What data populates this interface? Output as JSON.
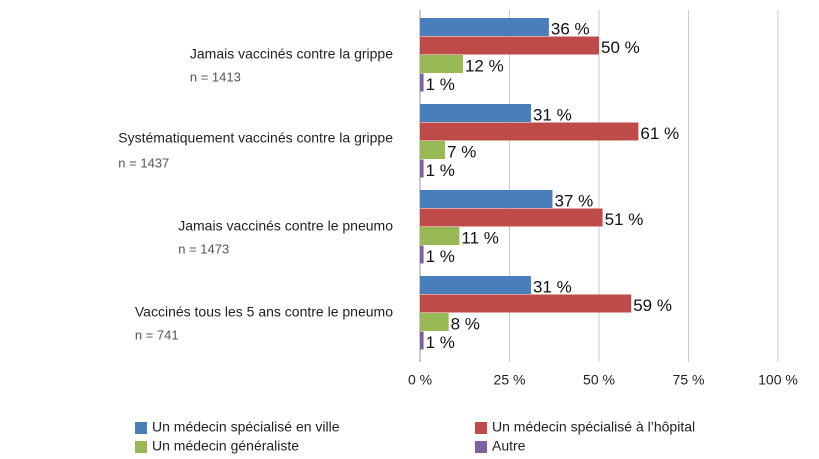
{
  "chart_data": {
    "type": "hbar",
    "categories": [
      "Jamais vaccinés contre la grippe",
      "Systématiquement vaccinés contre la grippe",
      "Jamais vaccinés contre le pneumo",
      "Vaccinés tous les 5 ans contre le pneumo"
    ],
    "category_notes": [
      "n = 1413",
      "n = 1437",
      "n = 1473",
      "n = 741"
    ],
    "series": [
      {
        "name": "Un médecin spécialisé en ville",
        "color": "#4a7ebb",
        "values": [
          36,
          31,
          37,
          31
        ],
        "value_labels": [
          "36 %",
          "31 %",
          "37 %",
          "31 %"
        ]
      },
      {
        "name": "Un médecin spécialisé à l’hôpital",
        "color": "#be4b48",
        "values": [
          50,
          61,
          51,
          59
        ],
        "value_labels": [
          "50 %",
          "61 %",
          "51 %",
          "59 %"
        ]
      },
      {
        "name": "Un médecin généraliste",
        "color": "#98b954",
        "values": [
          12,
          7,
          11,
          8
        ],
        "value_labels": [
          "12 %",
          "7 %",
          "11 %",
          "8 %"
        ]
      },
      {
        "name": "Autre",
        "color": "#7d60a0",
        "values": [
          1,
          1,
          1,
          1
        ],
        "value_labels": [
          "1 %",
          "1 %",
          "1 %",
          "1 %"
        ]
      }
    ],
    "xlim": [
      0,
      100
    ],
    "xticks": [
      {
        "value": 0,
        "label": "0 %"
      },
      {
        "value": 25,
        "label": "25 %"
      },
      {
        "value": 50,
        "label": "50 %"
      },
      {
        "value": 75,
        "label": "75 %"
      },
      {
        "value": 100,
        "label": "100 %"
      }
    ],
    "grid": true
  }
}
